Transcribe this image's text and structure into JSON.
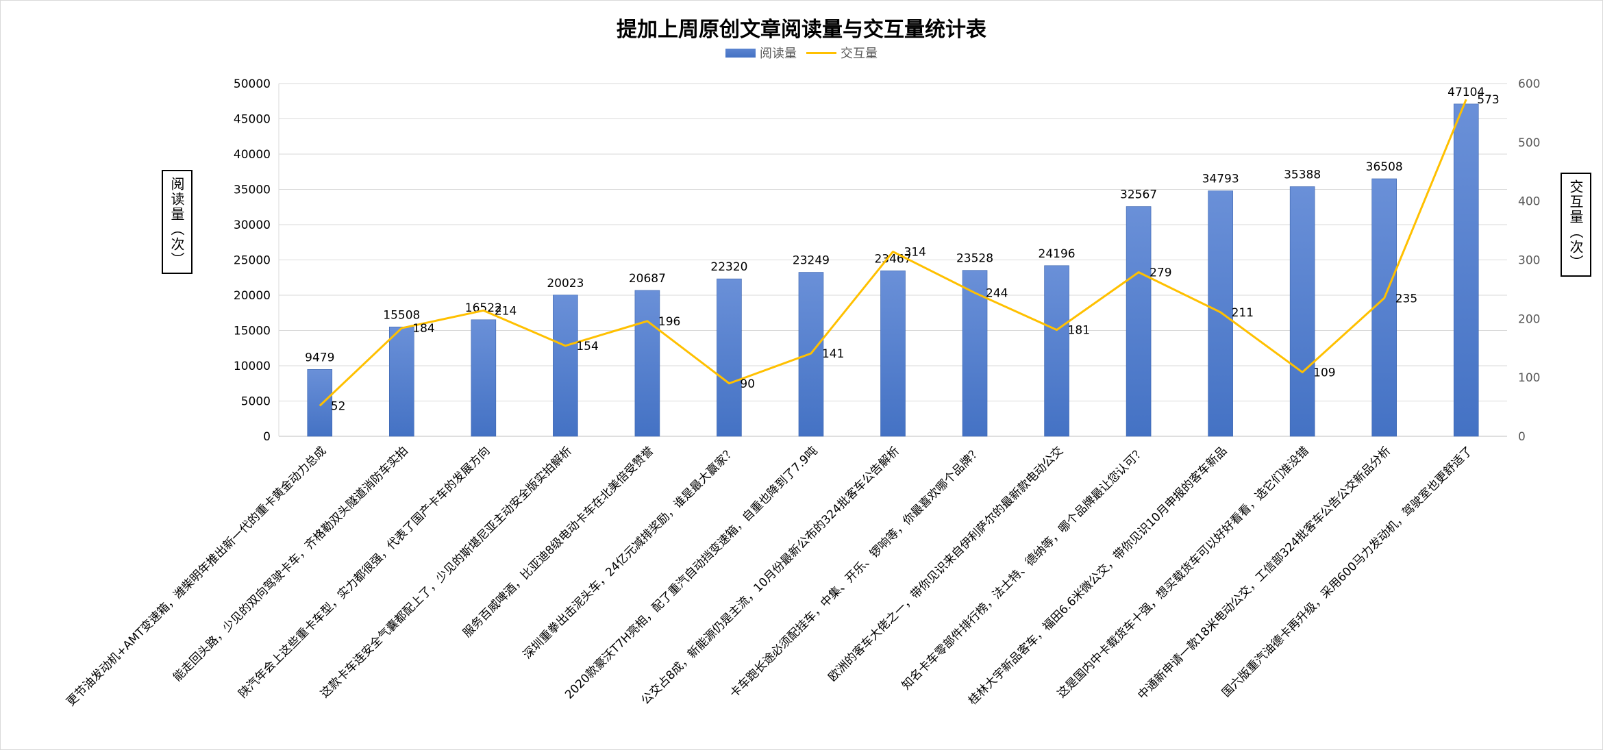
{
  "chart_data": {
    "type": "bar",
    "title": "提加上周原创文章阅读量与交互量统计表",
    "ylabel": "阅读量（次）",
    "y2label": "交互量（次）",
    "ylim": [
      0,
      50000
    ],
    "y2lim": [
      0,
      600
    ],
    "yticks": [
      "0",
      "5000",
      "10000",
      "15000",
      "20000",
      "25000",
      "30000",
      "35000",
      "40000",
      "45000",
      "50000"
    ],
    "y2ticks": [
      "0",
      "100",
      "200",
      "300",
      "400",
      "500",
      "600"
    ],
    "grid": true,
    "legend_position": "top",
    "categories": [
      "更节油发动机+AMT变速箱，潍柴明年推出新一代的重卡黄金动力总成",
      "能走回头路，少见的双向驾驶卡车，齐格勒双头隧道消防车实拍",
      "陕汽年会上这些重卡车型，实力都很强，代表了国产卡车的发展方向",
      "这款卡车连安全气囊都配上了，少见的斯堪尼亚主动安全版实拍解析",
      "服务百威啤酒，比亚迪8级电动卡车在北美倍受赞誉",
      "深圳重拳出击泥头车，24亿元减排奖励，谁是最大赢家？",
      "2020款豪沃T7H亮相，配了重汽自动挡变速箱，自重也降到了7.9吨",
      "公交占8成，新能源仍是主流，10月份最新公布的324批客车公告解析",
      "卡车跑长途必须配挂车，中集、开乐、锣响等，你最喜欢哪个品牌？",
      "欧洲的客车大佬之一，带你见识来自伊利萨尔的最新款电动公交",
      "知名卡车零部件排行榜，法士特、德纳等，哪个品牌最让您认可？",
      "桂林大宇新品客车，福田6.6米微公交，带你见识10月申报的客车新品",
      "这是国内中卡载货车十强，想买载货车可以好好看看，选它们准没错",
      "中通新申请一款18米电动公交，工信部324批客车公告公交新品分析",
      "国六版重汽油德卡再升级，采用600马力发动机，驾驶室也更舒适了"
    ],
    "series": [
      {
        "name": "阅读量",
        "type": "bar",
        "axis": "left",
        "color": "#4472c4",
        "values": [
          9479,
          15508,
          16522,
          20023,
          20687,
          22320,
          23249,
          23467,
          23528,
          24196,
          32567,
          34793,
          35388,
          36508,
          47104
        ]
      },
      {
        "name": "交互量",
        "type": "line",
        "axis": "right",
        "color": "#ffc000",
        "values": [
          52,
          184,
          214,
          154,
          196,
          90,
          141,
          314,
          244,
          181,
          279,
          211,
          109,
          235,
          573
        ]
      }
    ]
  }
}
